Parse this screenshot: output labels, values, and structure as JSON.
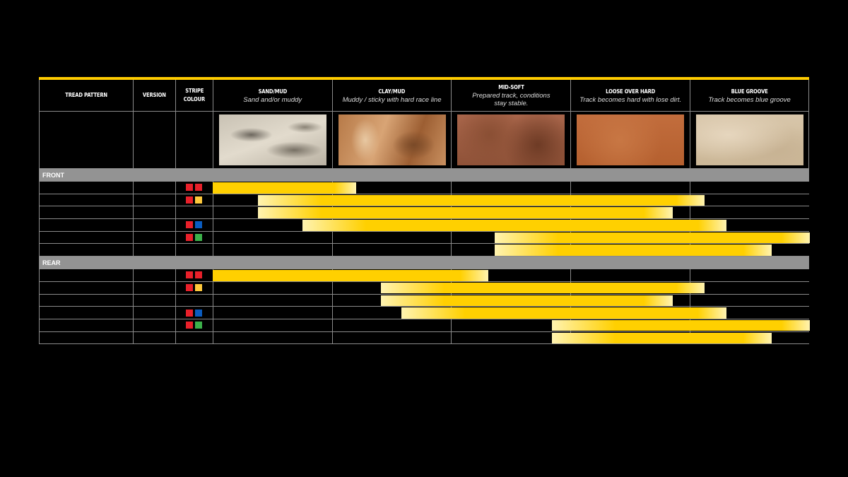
{
  "header": {
    "tread_pattern": "TREAD PATTERN",
    "version": "VERSION",
    "stripe_colour_1": "STRIPE",
    "stripe_colour_2": "COLOUR",
    "conditions": [
      {
        "title": "SAND/MUD",
        "subtitle": "Sand and/or muddy",
        "subtitle2": ""
      },
      {
        "title": "CLAY/MUD",
        "subtitle": "Muddy / sticky with hard race line",
        "subtitle2": ""
      },
      {
        "title": "MID-SOFT",
        "subtitle": "Prepared track, conditions",
        "subtitle2": "stay stable."
      },
      {
        "title": "LOOSE OVER HARD",
        "subtitle": "Track becomes hard with lose dirt.",
        "subtitle2": ""
      },
      {
        "title": "BLUE GROOVE",
        "subtitle": "Track becomes blue groove",
        "subtitle2": ""
      }
    ]
  },
  "colors": {
    "accent": "#ffcc00",
    "bar_solid": "#ffd000",
    "bar_light": "#fff3b0",
    "red": "#e8202a",
    "yellow": "#ffc93c",
    "blue": "#0a5cc0",
    "green": "#3cb04a"
  },
  "sections": [
    {
      "label": "FRONT",
      "rows": [
        {
          "stripes": [
            "red",
            "red"
          ],
          "range": [
            0,
            1.2
          ]
        },
        {
          "stripes": [
            "red",
            "yellow"
          ],
          "range": [
            0.38,
            4.12
          ]
        },
        {
          "stripes": [],
          "range": [
            0.38,
            3.85
          ]
        },
        {
          "stripes": [
            "red",
            "blue"
          ],
          "range": [
            0.75,
            4.3
          ]
        },
        {
          "stripes": [
            "red",
            "green"
          ],
          "range": [
            2.36,
            5.0
          ]
        },
        {
          "stripes": [],
          "range": [
            2.36,
            4.68
          ]
        }
      ]
    },
    {
      "label": "REAR",
      "rows": [
        {
          "stripes": [
            "red",
            "red"
          ],
          "range": [
            0,
            2.31
          ]
        },
        {
          "stripes": [
            "red",
            "yellow"
          ],
          "range": [
            1.41,
            4.12
          ]
        },
        {
          "stripes": [],
          "range": [
            1.41,
            3.85
          ]
        },
        {
          "stripes": [
            "red",
            "blue"
          ],
          "range": [
            1.58,
            4.3
          ]
        },
        {
          "stripes": [
            "red",
            "green"
          ],
          "range": [
            2.84,
            5.0
          ]
        },
        {
          "stripes": [],
          "range": [
            2.84,
            4.68
          ]
        }
      ]
    }
  ]
}
